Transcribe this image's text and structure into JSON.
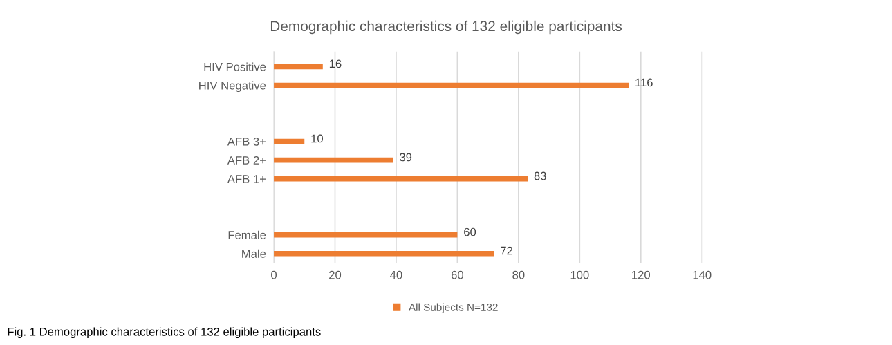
{
  "chart_data": {
    "type": "bar",
    "orientation": "horizontal",
    "title": "Demographic characteristics of 132 eligible participants",
    "categories": [
      "HIV Positive",
      "HIV Negative",
      null,
      null,
      "AFB 3+",
      "AFB 2+",
      "AFB 1+",
      null,
      null,
      "Female",
      "Male"
    ],
    "series": [
      {
        "name": "All Subjects N=132",
        "color": "#ed7d31",
        "values": [
          16,
          116,
          null,
          null,
          10,
          39,
          83,
          null,
          null,
          60,
          72
        ]
      }
    ],
    "xlim": [
      0,
      140
    ],
    "xticks": [
      0,
      20,
      40,
      60,
      80,
      100,
      120,
      140
    ],
    "grid": "x",
    "legend": "bottom",
    "data_labels": true,
    "annotations": [
      "Fig. 1 Demographic characteristics of 132 eligible participants"
    ]
  }
}
